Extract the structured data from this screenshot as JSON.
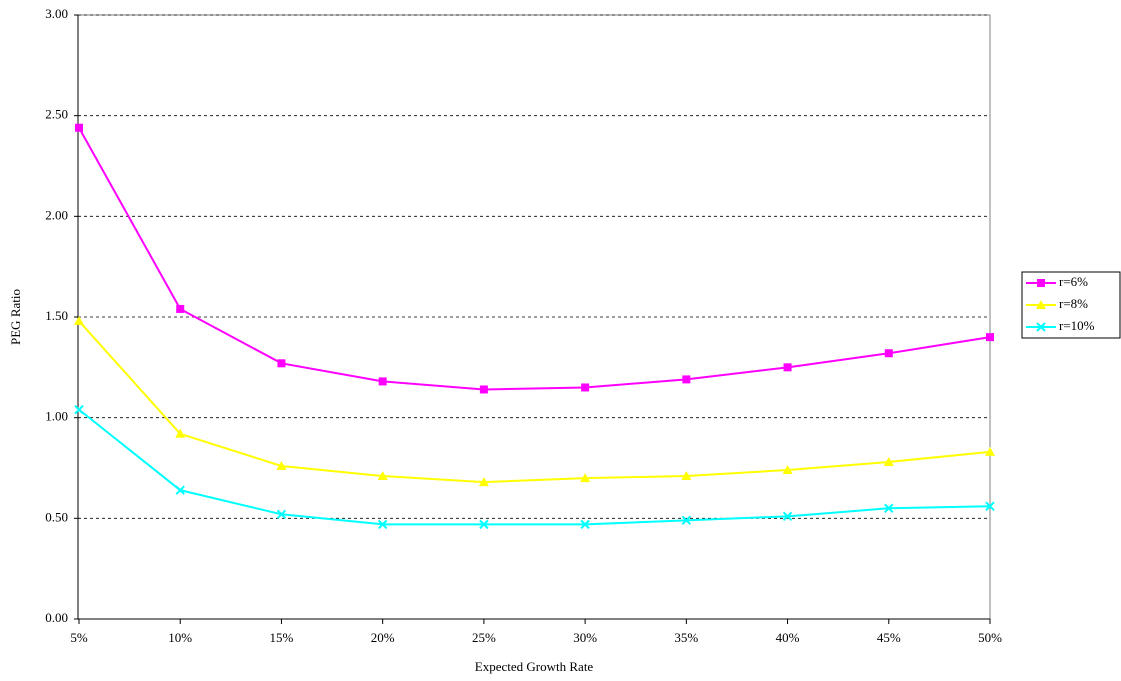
{
  "chart_data": {
    "type": "line",
    "x_label": "Expected Growth Rate",
    "y_label": "PEG Ratio",
    "categories": [
      "5%",
      "10%",
      "15%",
      "20%",
      "25%",
      "30%",
      "35%",
      "40%",
      "45%",
      "50%"
    ],
    "series": [
      {
        "name": "r=6%",
        "color": "#ff00ff",
        "marker": "square",
        "values": [
          2.44,
          1.54,
          1.27,
          1.18,
          1.14,
          1.15,
          1.19,
          1.25,
          1.32,
          1.4
        ]
      },
      {
        "name": "r=8%",
        "color": "#ffff00",
        "marker": "triangle",
        "values": [
          1.48,
          0.92,
          0.76,
          0.71,
          0.68,
          0.7,
          0.71,
          0.74,
          0.78,
          0.83
        ]
      },
      {
        "name": "r=10%",
        "color": "#00ffff",
        "marker": "x",
        "values": [
          1.04,
          0.64,
          0.52,
          0.47,
          0.47,
          0.47,
          0.49,
          0.51,
          0.55,
          0.56
        ]
      }
    ],
    "ylim": [
      0,
      3
    ],
    "yticks": [
      {
        "value": 0,
        "label": "0.00"
      },
      {
        "value": 0.5,
        "label": "0.50"
      },
      {
        "value": 1,
        "label": "1.00"
      },
      {
        "value": 1.5,
        "label": "1.50"
      },
      {
        "value": 2,
        "label": "2.00"
      },
      {
        "value": 2.5,
        "label": "2.50"
      },
      {
        "value": 3,
        "label": "3.00"
      }
    ],
    "grid": true,
    "legend": "right"
  }
}
